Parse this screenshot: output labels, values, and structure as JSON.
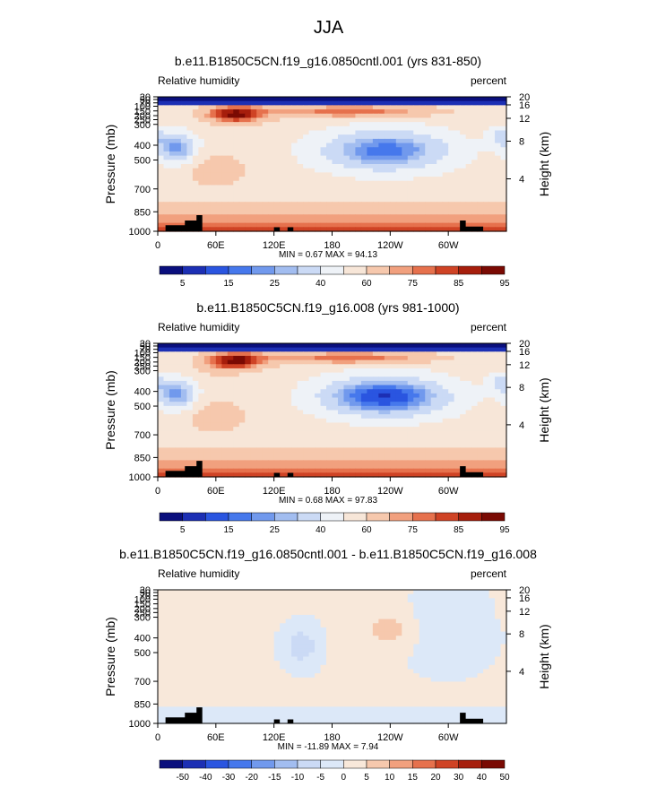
{
  "figure_title": "JJA",
  "colors": {
    "abs_scale": [
      "#0a0f7d",
      "#1c2fb4",
      "#2a55e0",
      "#4678ec",
      "#7199ed",
      "#a2bdf0",
      "#cbdaf5",
      "#eef2f7",
      "#f7e6d8",
      "#f6c8ad",
      "#f1a07e",
      "#e6714d",
      "#cf4325",
      "#a61e0c",
      "#7a0a03"
    ],
    "diff_scale": [
      "#0a0f7d",
      "#1c2fb4",
      "#2a55e0",
      "#4678ec",
      "#7199ed",
      "#a2bdf0",
      "#cbdaf5",
      "#dce8f8",
      "#f8e8da",
      "#f6c8ad",
      "#f1a07e",
      "#e6714d",
      "#cf4325",
      "#a61e0c",
      "#7a0a03"
    ],
    "topography": "#000000"
  },
  "chart_data": [
    {
      "type": "heatmap",
      "title": "b.e11.B1850C5CN.f19_g16.0850cntl.001 (yrs 831-850)",
      "left_label": "Relative humidity",
      "right_label": "percent",
      "ylabel": "Pressure (mb)",
      "ylabel_right": "Height (km)",
      "pressure_ticks": [
        "30",
        "50",
        "70",
        "100",
        "150",
        "200",
        "250",
        "300",
        "400",
        "500",
        "700",
        "850",
        "1000"
      ],
      "height_ticks": [
        "20",
        "16",
        "12",
        "8",
        "4"
      ],
      "x_ticks": [
        "0",
        "60E",
        "120E",
        "180",
        "120W",
        "60W"
      ],
      "stats": "MIN =  0.67  MAX = 94.13",
      "colorbar_labels": [
        "5",
        "15",
        "25",
        "40",
        "60",
        "75",
        "85",
        "95"
      ],
      "field": "abs"
    },
    {
      "type": "heatmap",
      "title": "b.e11.B1850C5CN.f19_g16.008 (yrs 981-1000)",
      "left_label": "Relative humidity",
      "right_label": "percent",
      "ylabel": "Pressure (mb)",
      "ylabel_right": "Height (km)",
      "pressure_ticks": [
        "30",
        "50",
        "70",
        "100",
        "150",
        "200",
        "250",
        "300",
        "400",
        "500",
        "700",
        "850",
        "1000"
      ],
      "height_ticks": [
        "20",
        "16",
        "12",
        "8",
        "4"
      ],
      "x_ticks": [
        "0",
        "60E",
        "120E",
        "180",
        "120W",
        "60W"
      ],
      "stats": "MIN =  0.68  MAX = 97.83",
      "colorbar_labels": [
        "5",
        "15",
        "25",
        "40",
        "60",
        "75",
        "85",
        "95"
      ],
      "field": "abs"
    },
    {
      "type": "heatmap",
      "title": "b.e11.B1850C5CN.f19_g16.0850cntl.001 - b.e11.B1850C5CN.f19_g16.008",
      "left_label": "Relative humidity",
      "right_label": "percent",
      "ylabel": "Pressure (mb)",
      "ylabel_right": "Height (km)",
      "pressure_ticks": [
        "30",
        "50",
        "70",
        "100",
        "150",
        "200",
        "250",
        "300",
        "400",
        "500",
        "700",
        "850",
        "1000"
      ],
      "height_ticks": [
        "20",
        "16",
        "12",
        "8",
        "4"
      ],
      "x_ticks": [
        "0",
        "60E",
        "120E",
        "180",
        "120W",
        "60W"
      ],
      "stats": "MIN = -11.89  MAX =  7.94",
      "colorbar_labels": [
        "-50",
        "-40",
        "-30",
        "-20",
        "-15",
        "-10",
        "-5",
        "0",
        "5",
        "10",
        "15",
        "20",
        "30",
        "40",
        "50"
      ],
      "field": "diff"
    }
  ]
}
